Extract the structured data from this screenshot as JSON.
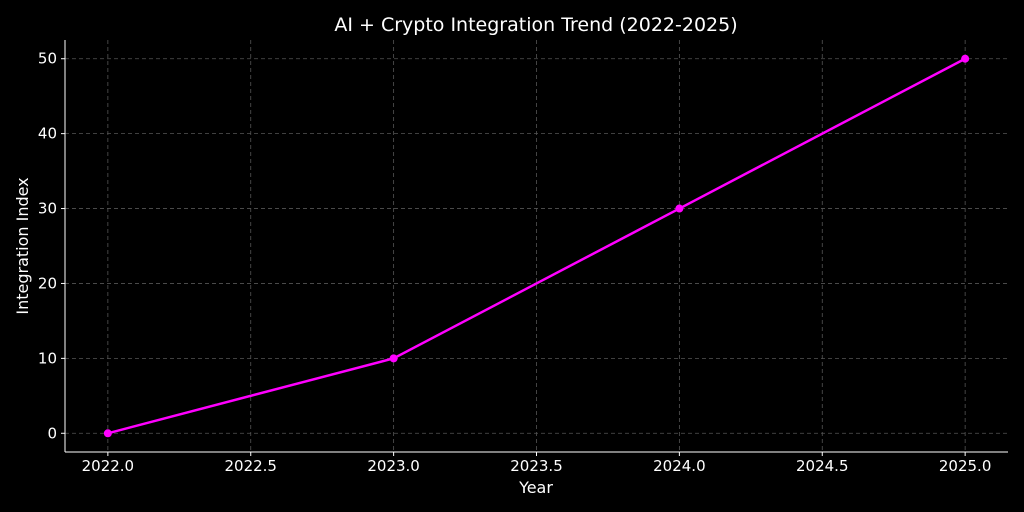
{
  "chart_data": {
    "type": "line",
    "title": "AI + Crypto Integration Trend (2022-2025)",
    "x_label": "Year",
    "y_label": "Integration Index",
    "x": [
      2022,
      2023,
      2024,
      2025
    ],
    "series": [
      {
        "name": "Integration Index",
        "color": "#ff00ff",
        "values": [
          0,
          10,
          30,
          50
        ]
      }
    ],
    "xlim": [
      2021.85,
      2025.15
    ],
    "xticks": [
      {
        "value": 2022,
        "label": "2022.0"
      },
      2022.5,
      {
        "value": 2023,
        "label": "2023.0"
      },
      2023.5,
      {
        "value": 2024,
        "label": "2024.0"
      },
      2024.5,
      {
        "value": 2025,
        "label": "2025.0"
      }
    ],
    "ylim": [
      -2.5,
      52.5
    ],
    "yticks": [
      0,
      10,
      20,
      30,
      40,
      50
    ],
    "grid": true
  }
}
